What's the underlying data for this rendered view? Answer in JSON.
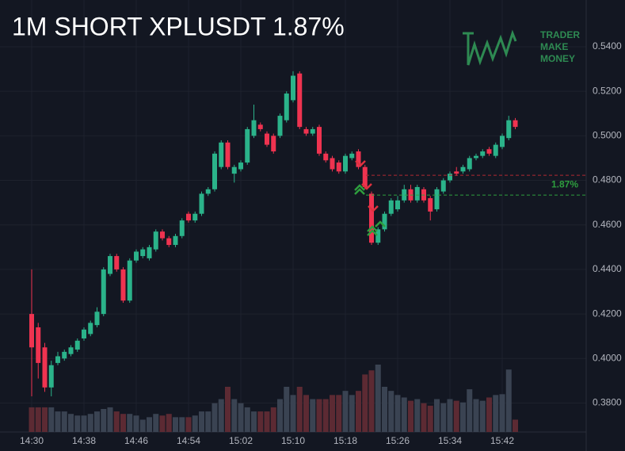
{
  "chart_data": {
    "type": "candlestick",
    "title": "1M SHORT XPLUSDT 1.87%",
    "logo": [
      "TRADER",
      "MAKE",
      "MONEY"
    ],
    "up_color": "#2bb38a",
    "down_color": "#ef3350",
    "volume_up_color": "#3a4352",
    "volume_down_color": "#5c2a33",
    "grid": true,
    "categories": [
      "14:30",
      null,
      null,
      null,
      null,
      null,
      null,
      null,
      "14:38",
      null,
      null,
      null,
      null,
      null,
      null,
      null,
      "14:46",
      null,
      null,
      null,
      null,
      null,
      null,
      null,
      "14:54",
      null,
      null,
      null,
      null,
      null,
      null,
      null,
      "15:02",
      null,
      null,
      null,
      null,
      null,
      null,
      null,
      "15:10",
      null,
      null,
      null,
      null,
      null,
      null,
      null,
      "15:18",
      null,
      null,
      null,
      null,
      null,
      null,
      null,
      "15:26",
      null,
      null,
      null,
      null,
      null,
      null,
      null,
      "15:34",
      null,
      null,
      null,
      null,
      null,
      null,
      null,
      "15:42",
      null,
      null
    ],
    "open": [
      0.42,
      0.414,
      0.405,
      0.387,
      0.398,
      0.4,
      0.402,
      0.404,
      0.409,
      0.411,
      0.415,
      0.42,
      0.438,
      0.446,
      0.44,
      0.426,
      0.444,
      0.446,
      0.445,
      0.449,
      0.457,
      0.454,
      0.451,
      0.455,
      0.465,
      0.462,
      0.465,
      0.474,
      0.476,
      0.486,
      0.497,
      0.483,
      0.485,
      0.488,
      0.5,
      0.505,
      0.501,
      0.5,
      0.5,
      0.507,
      0.516,
      0.528,
      0.503,
      0.501,
      0.504,
      0.492,
      0.49,
      0.488,
      0.484,
      0.49,
      0.493,
      0.486,
      0.474,
      0.452,
      0.458,
      0.465,
      0.467,
      0.471,
      0.476,
      0.471,
      0.476,
      0.472,
      0.467,
      0.475,
      0.48,
      0.484,
      0.484,
      0.485,
      0.49,
      0.491,
      0.494,
      0.491,
      0.495,
      0.499,
      0.507
    ],
    "high": [
      0.44,
      0.416,
      0.407,
      0.399,
      0.403,
      0.404,
      0.406,
      0.409,
      0.414,
      0.417,
      0.423,
      0.441,
      0.447,
      0.447,
      0.441,
      0.445,
      0.449,
      0.45,
      0.451,
      0.458,
      0.458,
      0.455,
      0.456,
      0.463,
      0.466,
      0.466,
      0.475,
      0.477,
      0.493,
      0.498,
      0.498,
      0.487,
      0.489,
      0.504,
      0.514,
      0.506,
      0.502,
      0.501,
      0.51,
      0.52,
      0.529,
      0.529,
      0.504,
      0.504,
      0.505,
      0.493,
      0.491,
      0.489,
      0.492,
      0.493,
      0.494,
      0.487,
      0.475,
      0.459,
      0.466,
      0.472,
      0.473,
      0.478,
      0.478,
      0.478,
      0.477,
      0.473,
      0.477,
      0.481,
      0.484,
      0.486,
      0.487,
      0.491,
      0.492,
      0.494,
      0.495,
      0.497,
      0.501,
      0.509,
      0.508
    ],
    "low": [
      0.383,
      0.391,
      0.385,
      0.383,
      0.397,
      0.399,
      0.401,
      0.403,
      0.408,
      0.41,
      0.414,
      0.419,
      0.437,
      0.439,
      0.425,
      0.425,
      0.443,
      0.445,
      0.444,
      0.448,
      0.453,
      0.45,
      0.45,
      0.454,
      0.461,
      0.461,
      0.464,
      0.473,
      0.475,
      0.485,
      0.485,
      0.479,
      0.484,
      0.487,
      0.499,
      0.502,
      0.495,
      0.492,
      0.499,
      0.506,
      0.515,
      0.503,
      0.5,
      0.5,
      0.491,
      0.488,
      0.484,
      0.483,
      0.483,
      0.489,
      0.485,
      0.476,
      0.451,
      0.451,
      0.457,
      0.464,
      0.466,
      0.47,
      0.47,
      0.47,
      0.47,
      0.462,
      0.466,
      0.474,
      0.479,
      0.482,
      0.483,
      0.484,
      0.489,
      0.49,
      0.491,
      0.49,
      0.494,
      0.498,
      0.503
    ],
    "close": [
      0.405,
      0.398,
      0.387,
      0.397,
      0.401,
      0.403,
      0.405,
      0.408,
      0.413,
      0.416,
      0.421,
      0.44,
      0.446,
      0.44,
      0.426,
      0.444,
      0.448,
      0.449,
      0.45,
      0.457,
      0.454,
      0.451,
      0.455,
      0.462,
      0.462,
      0.465,
      0.474,
      0.476,
      0.492,
      0.497,
      0.486,
      0.486,
      0.488,
      0.503,
      0.507,
      0.503,
      0.496,
      0.493,
      0.509,
      0.519,
      0.527,
      0.504,
      0.501,
      0.503,
      0.492,
      0.489,
      0.485,
      0.484,
      0.491,
      0.492,
      0.486,
      0.477,
      0.452,
      0.458,
      0.465,
      0.471,
      0.471,
      0.476,
      0.471,
      0.477,
      0.471,
      0.466,
      0.476,
      0.48,
      0.483,
      0.483,
      0.486,
      0.49,
      0.491,
      0.493,
      0.492,
      0.496,
      0.5,
      0.507,
      0.504
    ],
    "volume": [
      30,
      30,
      30,
      30,
      25,
      25,
      22,
      20,
      20,
      22,
      25,
      28,
      30,
      25,
      22,
      22,
      20,
      15,
      18,
      22,
      20,
      22,
      18,
      18,
      18,
      20,
      25,
      25,
      35,
      40,
      55,
      40,
      35,
      30,
      25,
      25,
      25,
      30,
      40,
      55,
      45,
      55,
      45,
      40,
      40,
      40,
      45,
      45,
      50,
      45,
      50,
      70,
      75,
      82,
      55,
      50,
      45,
      42,
      38,
      40,
      35,
      32,
      40,
      35,
      40,
      38,
      36,
      52,
      40,
      38,
      42,
      45,
      46,
      76,
      15
    ],
    "levels": [
      {
        "value": 0.4823,
        "color": "#b22833"
      },
      {
        "value": 0.4734,
        "color": "#2e9e3e",
        "label": "1.87%"
      }
    ],
    "ylim": [
      0.367,
      0.561
    ],
    "yticks": [
      {
        "value": 0.38,
        "label": "0.3800"
      },
      {
        "value": 0.4,
        "label": "0.4000"
      },
      {
        "value": 0.42,
        "label": "0.4200"
      },
      {
        "value": 0.44,
        "label": "0.4400"
      },
      {
        "value": 0.46,
        "label": "0.4600"
      },
      {
        "value": 0.48,
        "label": "0.4800"
      },
      {
        "value": 0.5,
        "label": "0.5000"
      },
      {
        "value": 0.52,
        "label": "0.5200"
      },
      {
        "value": 0.54,
        "label": "0.5400"
      }
    ]
  }
}
